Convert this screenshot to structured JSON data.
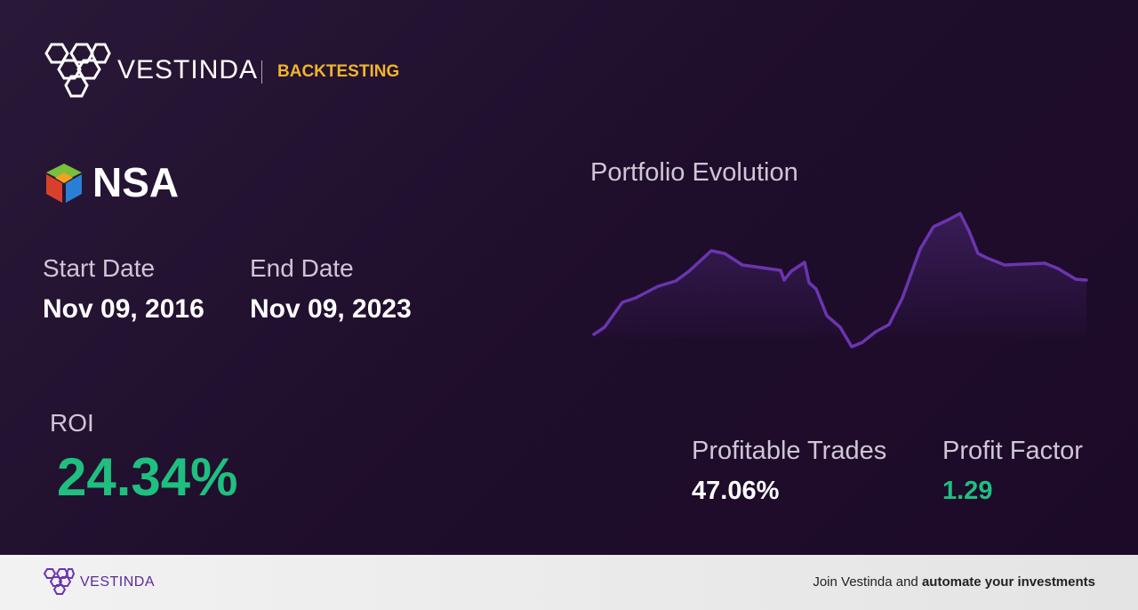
{
  "header": {
    "brand": "VESTINDA",
    "section": "BACKTESTING"
  },
  "asset": {
    "symbol": "NSA"
  },
  "dates": {
    "start_label": "Start Date",
    "start": "Nov 09, 2016",
    "end_label": "End Date",
    "end": "Nov 09, 2023"
  },
  "chart": {
    "title": "Portfolio Evolution"
  },
  "stats": {
    "roi_label": "ROI",
    "roi": "24.34%",
    "profitable_trades_label": "Profitable Trades",
    "profitable_trades": "47.06%",
    "profit_factor_label": "Profit Factor",
    "profit_factor": "1.29"
  },
  "footer": {
    "brand": "VESTINDA",
    "cta": "Join Vestinda and",
    "cta_bold": "automate your investments"
  }
}
